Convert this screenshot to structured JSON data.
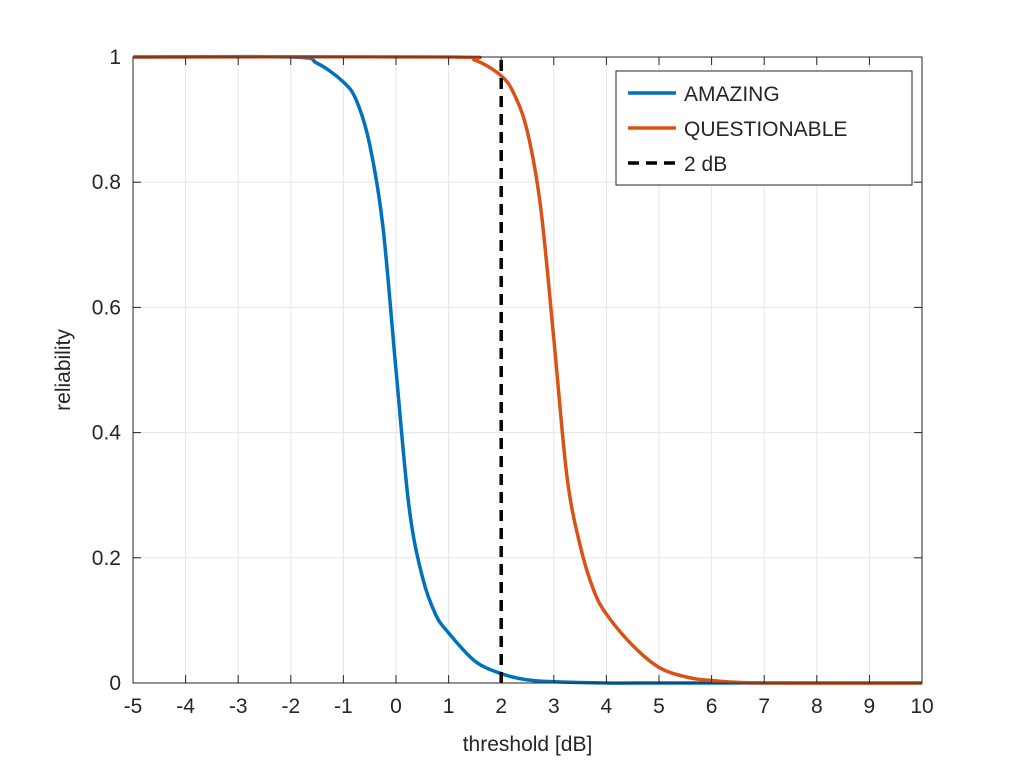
{
  "chart_data": {
    "type": "line",
    "title": "",
    "xlabel": "threshold [dB]",
    "ylabel": "reliability",
    "xlim": [
      -5,
      10
    ],
    "ylim": [
      0,
      1
    ],
    "xticks": [
      -5,
      -4,
      -3,
      -2,
      -1,
      0,
      1,
      2,
      3,
      4,
      5,
      6,
      7,
      8,
      9,
      10
    ],
    "yticks": [
      0,
      0.2,
      0.4,
      0.6,
      0.8,
      1
    ],
    "xtick_labels": [
      "-5",
      "-4",
      "-3",
      "-2",
      "-1",
      "0",
      "1",
      "2",
      "3",
      "4",
      "5",
      "6",
      "7",
      "8",
      "9",
      "10"
    ],
    "ytick_labels": [
      "0",
      "0.2",
      "0.4",
      "0.6",
      "0.8",
      "1"
    ],
    "grid": true,
    "legend_position": "top-right",
    "series": [
      {
        "name": "AMAZING",
        "color": "#0072BD",
        "style": "solid",
        "x": [
          -5,
          -2,
          -1.5,
          -1,
          -0.75,
          -0.5,
          -0.25,
          0,
          0.25,
          0.5,
          0.75,
          1,
          1.5,
          2,
          2.5,
          3,
          4,
          5,
          10
        ],
        "y": [
          1,
          1,
          0.99,
          0.96,
          0.93,
          0.86,
          0.73,
          0.5,
          0.28,
          0.17,
          0.11,
          0.08,
          0.035,
          0.015,
          0.005,
          0.002,
          0.0,
          0.0,
          0.0
        ]
      },
      {
        "name": "QUESTIONABLE",
        "color": "#D95319",
        "style": "solid",
        "x": [
          -5,
          1,
          1.5,
          2,
          2.25,
          2.5,
          2.75,
          3,
          3.25,
          3.5,
          3.75,
          4,
          4.5,
          5,
          5.5,
          6,
          7,
          10
        ],
        "y": [
          1,
          1,
          0.995,
          0.97,
          0.94,
          0.88,
          0.76,
          0.55,
          0.33,
          0.22,
          0.15,
          0.11,
          0.06,
          0.025,
          0.01,
          0.004,
          0.0,
          0.0
        ]
      },
      {
        "name": "2 dB",
        "color": "#000000",
        "style": "dashed",
        "x": [
          2,
          2
        ],
        "y": [
          0,
          1
        ]
      }
    ]
  }
}
